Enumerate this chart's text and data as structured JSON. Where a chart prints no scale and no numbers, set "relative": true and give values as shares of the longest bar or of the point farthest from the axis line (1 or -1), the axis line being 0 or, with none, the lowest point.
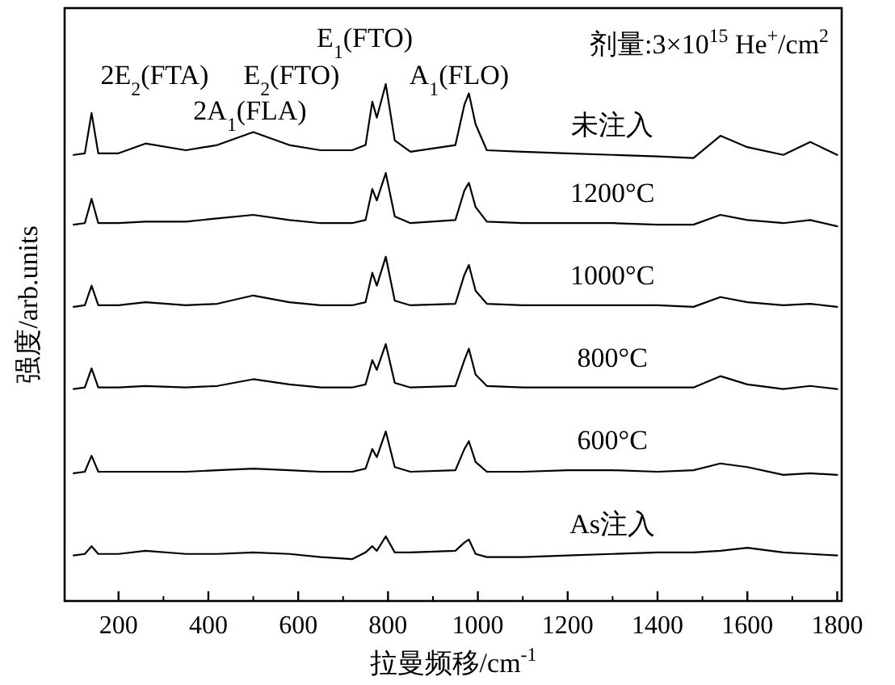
{
  "chart_data": {
    "type": "line",
    "relative": true,
    "xlabel": "拉曼频移/cm$^{-1}$",
    "ylabel": "强度/arb.units",
    "xlim": [
      80,
      1810
    ],
    "xticks": [
      200,
      400,
      600,
      800,
      1000,
      1200,
      1400,
      1600,
      1800
    ],
    "x": [
      100,
      125,
      140,
      155,
      200,
      260,
      350,
      420,
      500,
      580,
      650,
      720,
      750,
      765,
      775,
      795,
      815,
      850,
      950,
      970,
      980,
      995,
      1020,
      1100,
      1200,
      1300,
      1400,
      1480,
      1540,
      1600,
      1680,
      1740,
      1800
    ],
    "series": [
      {
        "name": "未注入",
        "color": "#000000",
        "values": [
          0.863,
          0.866,
          0.944,
          0.866,
          0.866,
          0.885,
          0.872,
          0.882,
          0.907,
          0.882,
          0.872,
          0.872,
          0.882,
          0.966,
          0.935,
          1.0,
          0.891,
          0.869,
          0.882,
          0.96,
          0.982,
          0.922,
          0.872,
          0.869,
          0.866,
          0.863,
          0.86,
          0.857,
          0.9,
          0.878,
          0.863,
          0.888,
          0.863
        ]
      },
      {
        "name": "1200°C",
        "color": "#000000",
        "values": [
          0.728,
          0.731,
          0.778,
          0.731,
          0.731,
          0.734,
          0.734,
          0.74,
          0.747,
          0.737,
          0.731,
          0.731,
          0.737,
          0.797,
          0.775,
          0.828,
          0.744,
          0.731,
          0.737,
          0.794,
          0.809,
          0.762,
          0.734,
          0.731,
          0.731,
          0.731,
          0.728,
          0.728,
          0.747,
          0.737,
          0.731,
          0.737,
          0.725
        ]
      },
      {
        "name": "1000°C",
        "color": "#000000",
        "values": [
          0.569,
          0.572,
          0.61,
          0.572,
          0.572,
          0.578,
          0.572,
          0.575,
          0.591,
          0.578,
          0.572,
          0.572,
          0.578,
          0.635,
          0.61,
          0.666,
          0.581,
          0.572,
          0.575,
          0.631,
          0.65,
          0.6,
          0.575,
          0.572,
          0.572,
          0.572,
          0.572,
          0.569,
          0.588,
          0.578,
          0.572,
          0.575,
          0.569
        ]
      },
      {
        "name": "800°C",
        "color": "#000000",
        "values": [
          0.41,
          0.413,
          0.45,
          0.413,
          0.413,
          0.416,
          0.413,
          0.416,
          0.429,
          0.419,
          0.413,
          0.413,
          0.419,
          0.466,
          0.447,
          0.497,
          0.422,
          0.413,
          0.416,
          0.466,
          0.488,
          0.438,
          0.416,
          0.413,
          0.413,
          0.413,
          0.413,
          0.413,
          0.435,
          0.419,
          0.41,
          0.416,
          0.41
        ]
      },
      {
        "name": "600°C",
        "color": "#000000",
        "values": [
          0.247,
          0.25,
          0.281,
          0.25,
          0.25,
          0.25,
          0.25,
          0.253,
          0.256,
          0.253,
          0.25,
          0.25,
          0.256,
          0.294,
          0.278,
          0.328,
          0.259,
          0.25,
          0.253,
          0.294,
          0.309,
          0.269,
          0.25,
          0.25,
          0.253,
          0.253,
          0.25,
          0.253,
          0.266,
          0.259,
          0.244,
          0.247,
          0.244
        ]
      },
      {
        "name": "As注入",
        "color": "#000000",
        "values": [
          0.088,
          0.091,
          0.106,
          0.091,
          0.091,
          0.097,
          0.091,
          0.091,
          0.094,
          0.091,
          0.085,
          0.081,
          0.094,
          0.106,
          0.097,
          0.125,
          0.094,
          0.094,
          0.097,
          0.113,
          0.119,
          0.091,
          0.085,
          0.085,
          0.088,
          0.091,
          0.094,
          0.094,
          0.097,
          0.103,
          0.094,
          0.091,
          0.088
        ]
      }
    ],
    "annotations": [
      {
        "text": "2E$_{2}$(FTA)",
        "x": 140,
        "y": 0.944
      },
      {
        "text": "2A$_{1}$(FLA)",
        "x": 500,
        "y": 0.907
      },
      {
        "text": "E$_{2}$(FTO)",
        "x": 765,
        "y": 0.966
      },
      {
        "text": "E$_{1}$(FTO)",
        "x": 795,
        "y": 1.0
      },
      {
        "text": "A$_{1}$(FLO)",
        "x": 980,
        "y": 0.982
      },
      "剂量:3×10$^{15}$ He$^{+}$/cm$^{2}$"
    ]
  }
}
